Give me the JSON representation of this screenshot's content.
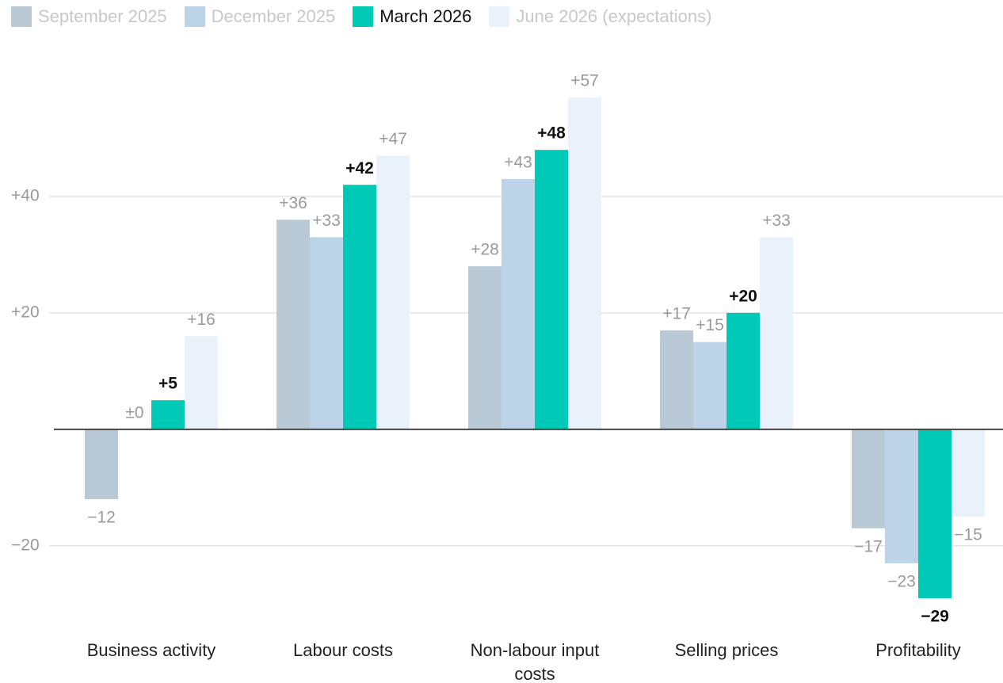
{
  "chart_data": {
    "type": "bar",
    "categories": [
      "Business activity",
      "Labour costs",
      "Non-labour input costs",
      "Selling prices",
      "Profitability"
    ],
    "series": [
      {
        "name": "September 2025",
        "color": "#b9cad6",
        "values": [
          -12,
          36,
          28,
          17,
          -17
        ],
        "value_labels": [
          "−12",
          "+36",
          "+28",
          "+17",
          "−17"
        ]
      },
      {
        "name": "December 2025",
        "color": "#bcd3e8",
        "values": [
          0,
          33,
          43,
          15,
          -23
        ],
        "value_labels": [
          "±0",
          "+33",
          "+43",
          "+15",
          "−23"
        ]
      },
      {
        "name": "March 2026",
        "color": "#00c9b7",
        "values": [
          5,
          42,
          48,
          20,
          -29
        ],
        "value_labels": [
          "+5",
          "+42",
          "+48",
          "+20",
          "−29"
        ]
      },
      {
        "name": "June 2026 (expectations)",
        "color": "#e9f1fa",
        "values": [
          16,
          47,
          57,
          33,
          -15
        ],
        "value_labels": [
          "+16",
          "+47",
          "+57",
          "+33",
          "−15"
        ]
      }
    ],
    "ylim": [
      -32,
      60
    ],
    "yticks": [
      {
        "value": -20,
        "label": "−20"
      },
      {
        "value": 20,
        "label": "+20"
      },
      {
        "value": 40,
        "label": "+40"
      }
    ],
    "grid": true,
    "legend": "top"
  }
}
